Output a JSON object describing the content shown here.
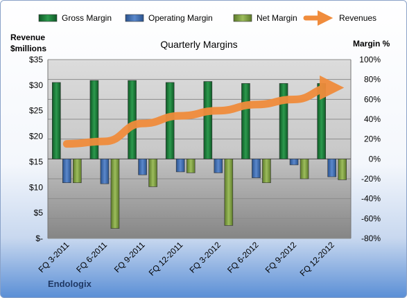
{
  "chart_data": {
    "type": "bar",
    "title": "Quarterly Margins",
    "brand": "Endologix",
    "left_axis_label": [
      "Revenue",
      "$millions"
    ],
    "right_axis_label": "Margin %",
    "categories": [
      "FQ 3-2011",
      "FQ 6-2011",
      "FQ 9-2011",
      "FQ 12-2011",
      "FQ 3-2012",
      "FQ 6-2012",
      "FQ 9-2012",
      "FQ 12-2012"
    ],
    "left_ticks": [
      "$35",
      "$30",
      "$25",
      "$20",
      "$15",
      "$10",
      "$5",
      "$-"
    ],
    "right_ticks": [
      "100%",
      "80%",
      "60%",
      "40%",
      "20%",
      "0%",
      "-20%",
      "-40%",
      "-60%",
      "-80%"
    ],
    "ylim_left": [
      0,
      35
    ],
    "ylim_right": [
      -80,
      100
    ],
    "series": [
      {
        "name": "Gross Margin",
        "axis": "right",
        "color": "#1e7a3c",
        "values": [
          77,
          79,
          79,
          77,
          78,
          76,
          76,
          76
        ]
      },
      {
        "name": "Operating Margin",
        "axis": "right",
        "color": "#3f6fb5",
        "values": [
          -24,
          -25,
          -16,
          -13,
          -14,
          -19,
          -6,
          -18
        ]
      },
      {
        "name": "Net Margin",
        "axis": "right",
        "color": "#7fa043",
        "values": [
          -24,
          -70,
          -28,
          -14,
          -67,
          -24,
          -20,
          -21
        ]
      },
      {
        "name": "Revenues",
        "axis": "left",
        "color": "#f08c3c",
        "values": [
          18.5,
          19.0,
          22.5,
          24.0,
          25.0,
          26.2,
          27.2,
          29.5
        ]
      }
    ],
    "grid": true,
    "legend_position": "top"
  }
}
